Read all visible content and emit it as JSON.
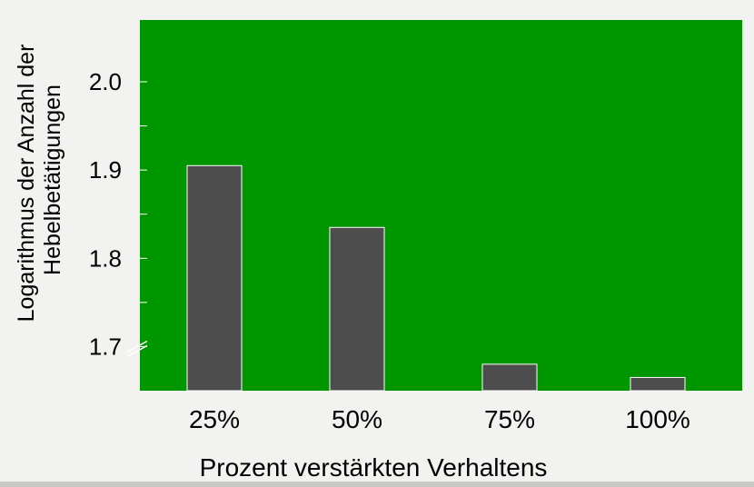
{
  "chart_data": {
    "type": "bar",
    "categories": [
      "25%",
      "50%",
      "75%",
      "100%"
    ],
    "values": [
      1.905,
      1.835,
      1.68,
      1.665
    ],
    "title": "",
    "xlabel": "Prozent verstärkten Verhaltens",
    "ylabel_lines": [
      "Logarithmus der Anzahl der",
      "Hebelbetätigungen"
    ],
    "ylim": [
      1.65,
      2.07
    ],
    "yticks": [
      1.7,
      1.8,
      1.9,
      2.0
    ],
    "ytick_labels": [
      "1.7",
      "1.8",
      "1.9",
      "2.0"
    ],
    "axis_break": true,
    "grid": false,
    "colors": {
      "plot_background": "#009600",
      "bar_fill": "#4d4d4d",
      "bar_stroke": "#ffffff",
      "tick_color": "#ffffff",
      "text_color": "#000000",
      "page_background": "#f2f2f0"
    }
  }
}
